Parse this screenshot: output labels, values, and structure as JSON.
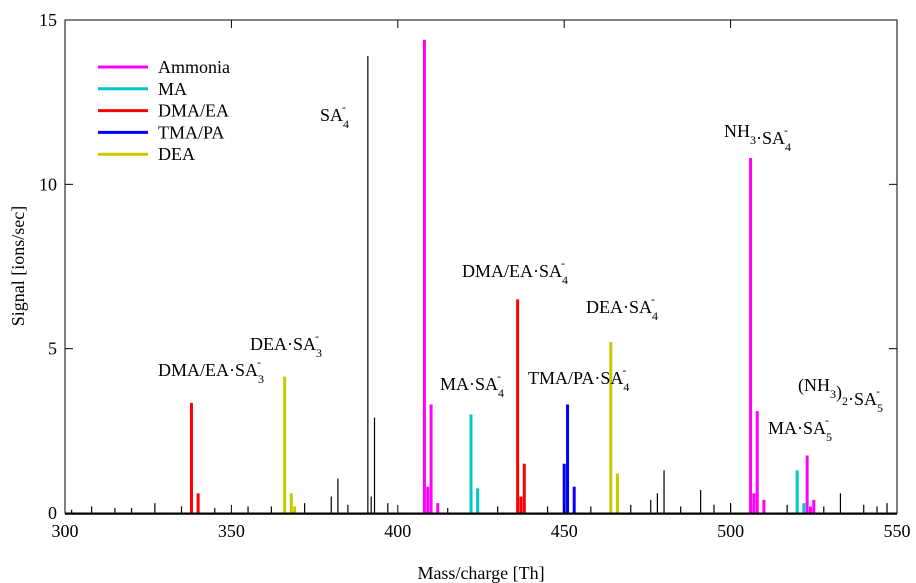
{
  "chart_data": {
    "type": "stick",
    "xlabel": "Mass/charge [Th]",
    "ylabel": "Signal [ions/sec]",
    "xlim": [
      300,
      550
    ],
    "ylim": [
      0,
      15
    ],
    "xticks": [
      300,
      350,
      400,
      450,
      500,
      550
    ],
    "yticks": [
      0,
      5,
      10,
      15
    ],
    "legend": "upper left",
    "series": [
      {
        "color": "#000000",
        "x": [
          302,
          308,
          315,
          320,
          327,
          335,
          345,
          355,
          362,
          372,
          380,
          382,
          385,
          391,
          392,
          393,
          397,
          415,
          430,
          445,
          458,
          470,
          476,
          478,
          480,
          485,
          491,
          495,
          500,
          517,
          528,
          533,
          540,
          544,
          547
        ],
        "values": [
          0.1,
          0.2,
          0.15,
          0.15,
          0.3,
          0.2,
          0.15,
          0.2,
          0.2,
          0.3,
          0.5,
          1.05,
          0.25,
          13.9,
          0.5,
          2.9,
          0.3,
          0.15,
          0.2,
          0.2,
          0.2,
          0.25,
          0.4,
          0.6,
          1.3,
          0.2,
          0.7,
          0.25,
          0.3,
          0.25,
          0.2,
          0.6,
          0.25,
          0.2,
          0.3
        ]
      },
      {
        "name": "Ammonia",
        "color": "#ff00ff",
        "x": [
          408,
          409,
          410,
          412,
          506,
          507,
          508,
          510,
          523,
          524,
          525
        ],
        "values": [
          14.4,
          0.8,
          3.3,
          0.3,
          10.8,
          0.6,
          3.1,
          0.4,
          1.75,
          0.2,
          0.4
        ]
      },
      {
        "name": "MA",
        "color": "#00c8c8",
        "x": [
          422,
          424,
          520,
          522
        ],
        "values": [
          3.0,
          0.75,
          1.3,
          0.3
        ]
      },
      {
        "name": "DMA/EA",
        "color": "#ff0000",
        "x": [
          338,
          340,
          436,
          437,
          438
        ],
        "values": [
          3.35,
          0.6,
          6.5,
          0.5,
          1.5
        ]
      },
      {
        "name": "TMA/PA",
        "color": "#0000ff",
        "x": [
          450,
          451,
          453
        ],
        "values": [
          1.5,
          3.3,
          0.8
        ]
      },
      {
        "name": "DEA",
        "color": "#c8c800",
        "x": [
          366,
          368,
          369,
          464,
          466
        ],
        "values": [
          4.15,
          0.6,
          0.2,
          5.2,
          1.2
        ]
      }
    ],
    "annotations": [
      {
        "parts": [
          {
            "t": "SA"
          },
          {
            "sub": "4",
            "sup": "-"
          }
        ]
      },
      {
        "parts": [
          {
            "t": "NH"
          },
          {
            "sub": "3"
          },
          {
            "t": "·SA"
          },
          {
            "sub": "4",
            "sup": "-"
          }
        ]
      },
      {
        "parts": [
          {
            "t": "DMA/EA·SA"
          },
          {
            "sub": "4",
            "sup": "-"
          }
        ]
      },
      {
        "parts": [
          {
            "t": "DEA·SA"
          },
          {
            "sub": "4",
            "sup": "-"
          }
        ]
      },
      {
        "parts": [
          {
            "t": "DEA·SA"
          },
          {
            "sub": "3",
            "sup": "-"
          }
        ]
      },
      {
        "parts": [
          {
            "t": "DMA/EA·SA"
          },
          {
            "sub": "3",
            "sup": "-"
          }
        ]
      },
      {
        "parts": [
          {
            "t": "MA·SA"
          },
          {
            "sub": "4",
            "sup": "-"
          }
        ]
      },
      {
        "parts": [
          {
            "t": "TMA/PA·SA"
          },
          {
            "sub": "4",
            "sup": "-"
          }
        ]
      },
      {
        "parts": [
          {
            "t": "(NH"
          },
          {
            "sub": "3"
          },
          {
            "t": ")"
          },
          {
            "sub": "2"
          },
          {
            "t": "·SA"
          },
          {
            "sub": "5",
            "sup": "-"
          }
        ]
      },
      {
        "parts": [
          {
            "t": "MA·SA"
          },
          {
            "sub": "5",
            "sup": "-"
          }
        ]
      }
    ]
  }
}
